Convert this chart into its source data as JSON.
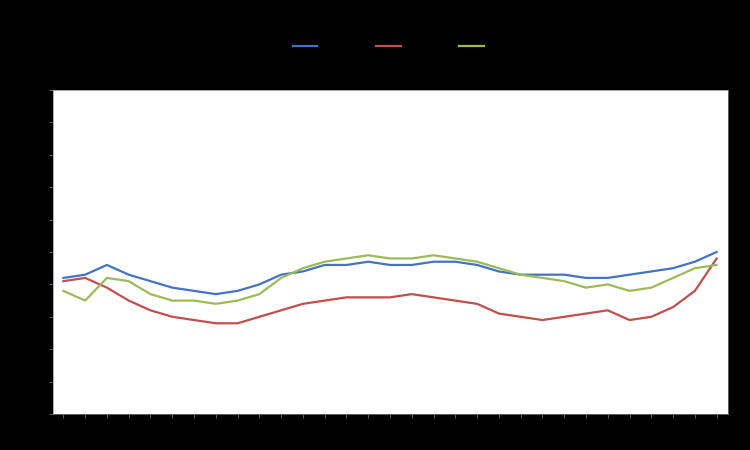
{
  "blue": [
    4.2,
    4.3,
    4.6,
    4.3,
    4.1,
    3.9,
    3.8,
    3.7,
    3.8,
    4.0,
    4.3,
    4.4,
    4.6,
    4.6,
    4.7,
    4.6,
    4.6,
    4.7,
    4.7,
    4.6,
    4.4,
    4.3,
    4.3,
    4.3,
    4.2,
    4.2,
    4.3,
    4.4,
    4.5,
    4.7,
    5.0
  ],
  "red": [
    4.1,
    4.2,
    3.9,
    3.5,
    3.2,
    3.0,
    2.9,
    2.8,
    2.8,
    3.0,
    3.2,
    3.4,
    3.5,
    3.6,
    3.6,
    3.6,
    3.7,
    3.6,
    3.5,
    3.4,
    3.1,
    3.0,
    2.9,
    3.0,
    3.1,
    3.2,
    2.9,
    3.0,
    3.3,
    3.8,
    4.8
  ],
  "green": [
    3.8,
    3.5,
    4.2,
    4.1,
    3.7,
    3.5,
    3.5,
    3.4,
    3.5,
    3.7,
    4.2,
    4.5,
    4.7,
    4.8,
    4.9,
    4.8,
    4.8,
    4.9,
    4.8,
    4.7,
    4.5,
    4.3,
    4.2,
    4.1,
    3.9,
    4.0,
    3.8,
    3.9,
    4.2,
    4.5,
    4.6
  ],
  "blue_color": "#4472C4",
  "red_color": "#C0504D",
  "green_color": "#9BBB59",
  "bg_color": "#000000",
  "plot_bg": "#FFFFFF",
  "ylim": [
    0,
    10
  ],
  "ytick_count": 11,
  "n_points": 31,
  "linewidth": 1.6
}
